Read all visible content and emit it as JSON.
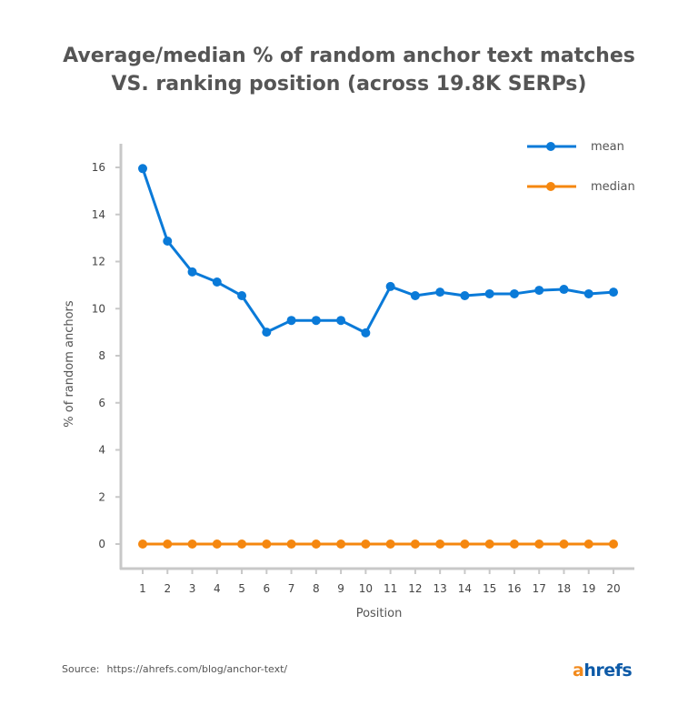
{
  "chart_data": {
    "type": "line",
    "title": "Average/median % of random anchor text matches VS. ranking position (across 19.8K SERPs)",
    "title_lines": [
      "Average/median % of random anchor text matches",
      "VS. ranking position (across 19.8K SERPs)"
    ],
    "xlabel": "Position",
    "ylabel": "% of random anchors",
    "x": [
      1,
      2,
      3,
      4,
      5,
      6,
      7,
      8,
      9,
      10,
      11,
      12,
      13,
      14,
      15,
      16,
      17,
      18,
      19,
      20
    ],
    "yticks": [
      0,
      2,
      4,
      6,
      8,
      10,
      12,
      14,
      16
    ],
    "ylim": [
      -1,
      17
    ],
    "grid": false,
    "legend_position": "top-right",
    "series": [
      {
        "name": "mean",
        "color": "#0a7ad8",
        "values": [
          15.95,
          12.87,
          11.56,
          11.13,
          10.55,
          9.0,
          9.5,
          9.5,
          9.5,
          8.97,
          10.94,
          10.55,
          10.7,
          10.55,
          10.63,
          10.63,
          10.78,
          10.82,
          10.63,
          10.7
        ]
      },
      {
        "name": "median",
        "color": "#f5870f",
        "values": [
          0,
          0,
          0,
          0,
          0,
          0,
          0,
          0,
          0,
          0,
          0,
          0,
          0,
          0,
          0,
          0,
          0,
          0,
          0,
          0
        ]
      }
    ]
  },
  "footer": {
    "source_label": "Source:",
    "source_url": "https://ahrefs.com/blog/anchor-text/",
    "logo_text": "ahrefs"
  }
}
